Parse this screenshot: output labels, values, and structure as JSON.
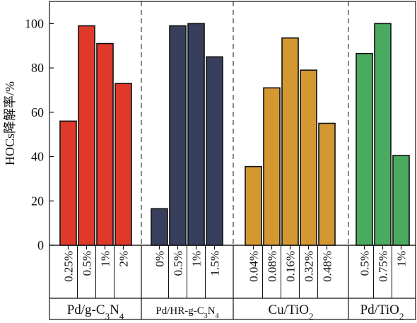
{
  "chart_data": {
    "type": "bar",
    "ylabel": "HOCs降解率/%",
    "ylim": [
      0,
      110
    ],
    "yticks": [
      0,
      20,
      40,
      60,
      80,
      100
    ],
    "grid": false,
    "groups": [
      {
        "name_parts": [
          {
            "t": "Pd/g-C",
            "s": false
          },
          {
            "t": "3",
            "s": true
          },
          {
            "t": "N",
            "s": false
          },
          {
            "t": "4",
            "s": true
          }
        ],
        "color": "#e0392c",
        "categories": [
          "0.25%",
          "0.5%",
          "1%",
          "2%"
        ],
        "values": [
          56,
          99,
          91,
          73
        ]
      },
      {
        "name_parts": [
          {
            "t": "Pd/HR-g-C",
            "s": false
          },
          {
            "t": "3",
            "s": true
          },
          {
            "t": "N",
            "s": false
          },
          {
            "t": "4",
            "s": true
          }
        ],
        "small": true,
        "color": "#383f5c",
        "categories": [
          "0%",
          "0.5%",
          "1%",
          "1.5%"
        ],
        "values": [
          16.5,
          99,
          100,
          85
        ]
      },
      {
        "name_parts": [
          {
            "t": "Cu/TiO",
            "s": false
          },
          {
            "t": "2",
            "s": true
          }
        ],
        "color": "#d39832",
        "categories": [
          "0.04%",
          "0.08%",
          "0.16%",
          "0.32%",
          "0.48%"
        ],
        "values": [
          35.5,
          71,
          93.5,
          79,
          55
        ]
      },
      {
        "name_parts": [
          {
            "t": "Pd/TiO",
            "s": false
          },
          {
            "t": "2",
            "s": true
          }
        ],
        "color": "#4aaa5f",
        "categories": [
          "0.5%",
          "0.75%",
          "1%"
        ],
        "values": [
          86.5,
          100,
          40.5
        ]
      }
    ]
  }
}
